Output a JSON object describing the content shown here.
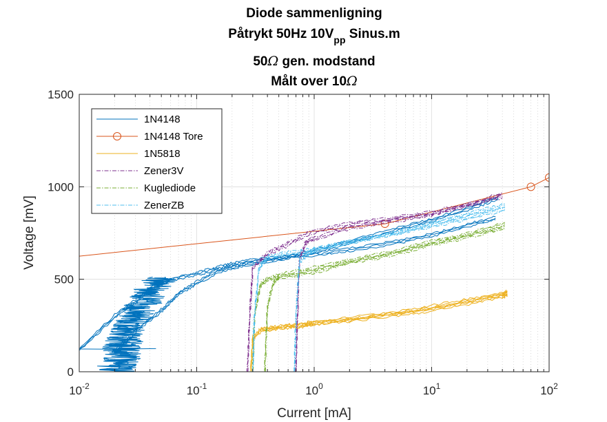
{
  "chart_data": {
    "type": "line",
    "title": [
      "Diode sammenligning",
      "Påtrykt 50Hz 10V_pp Sinus.m",
      "50Ω gen. modstand",
      "Målt over 10Ω"
    ],
    "title_parts": {
      "line1": "Diode sammenligning",
      "line2_main": "Påtrykt 50Hz 10V",
      "line2_sub": "pp",
      "line2_end": " Sinus.m",
      "line3_a": "50",
      "line3_omega": "Ω",
      "line3_b": " gen. modstand",
      "line4_a": "Målt over 10",
      "line4_omega": "Ω"
    },
    "xlabel": "Current [mA]",
    "ylabel": "Voltage [mV]",
    "xscale": "log",
    "xlim": [
      0.01,
      100
    ],
    "ylim": [
      0,
      1500
    ],
    "grid": "on (major and minor)",
    "legend_placement": "top-left",
    "x_ticks": [
      {
        "base": "10",
        "exp": "-2"
      },
      {
        "base": "10",
        "exp": "-1"
      },
      {
        "base": "10",
        "exp": "0"
      },
      {
        "base": "10",
        "exp": "1"
      },
      {
        "base": "10",
        "exp": "2"
      }
    ],
    "y_ticks": [
      "0",
      "500",
      "1000",
      "1500"
    ],
    "series": [
      {
        "name": "1N4148",
        "color": "#0072BD",
        "style": "solid",
        "marker": "none",
        "branches": [
          {
            "x": [
              0.0101,
              0.02,
              0.03,
              0.045,
              0.06,
              0.1,
              0.15,
              0.2,
              0.3,
              0.5,
              1,
              2,
              5,
              10,
              20,
              35
            ],
            "y": [
              120,
              300,
              380,
              470,
              500,
              530,
              560,
              580,
              600,
              615,
              635,
              660,
              700,
              740,
              790,
              830
            ],
            "noise": 0
          },
          {
            "x": [
              0.02,
              0.03,
              0.05,
              0.07,
              0.1,
              0.15,
              0.25,
              0.5,
              1,
              2,
              5,
              10,
              20,
              37
            ],
            "y": [
              100,
              220,
              330,
              420,
              480,
              540,
              580,
              610,
              650,
              700,
              770,
              820,
              880,
              940
            ],
            "noise": 0
          }
        ],
        "noise_band": {
          "x_range": [
            0.012,
            0.06
          ],
          "y_range": [
            0,
            510
          ]
        },
        "low_spike": {
          "x": [
            0.0101,
            0.018,
            0.045
          ],
          "y": [
            123,
            122,
            125
          ]
        }
      },
      {
        "name": "1N4148 Tore",
        "color": "#D95319",
        "style": "solid",
        "marker": "o",
        "x": [
          0.01,
          4,
          70,
          100
        ],
        "y": [
          625,
          800,
          1000,
          1050
        ]
      },
      {
        "name": "1N5818",
        "color": "#EDB120",
        "style": "solid",
        "marker": "none",
        "branches": [
          {
            "x": [
              0.29,
              0.3,
              0.35,
              0.5,
              0.8,
              1,
              2,
              5,
              10,
              20,
              40,
              44
            ],
            "y": [
              0,
              180,
              225,
              240,
              255,
              265,
              285,
              320,
              350,
              385,
              420,
              430
            ]
          },
          {
            "x": [
              0.35,
              0.5,
              0.8,
              1,
              2,
              5,
              10,
              20,
              40,
              44
            ],
            "y": [
              225,
              240,
              250,
              260,
              280,
              310,
              335,
              370,
              410,
              420
            ]
          }
        ]
      },
      {
        "name": "Zener3V",
        "color": "#7E2F8E",
        "style": "dash-dot",
        "marker": "none",
        "branches": [
          {
            "x": [
              0.27,
              0.28,
              0.3,
              0.4,
              0.6,
              0.9,
              2,
              5,
              10,
              20,
              40
            ],
            "y": [
              0,
              250,
              560,
              640,
              690,
              750,
              800,
              830,
              860,
              900,
              960
            ]
          },
          {
            "x": [
              0.7,
              0.72,
              0.75,
              0.85,
              1,
              2,
              5,
              10,
              20,
              40
            ],
            "y": [
              0,
              300,
              600,
              700,
              720,
              780,
              820,
              850,
              900,
              950
            ]
          }
        ]
      },
      {
        "name": "Kuglediode",
        "color": "#77AC30",
        "style": "dash-dot",
        "marker": "none",
        "branches": [
          {
            "x": [
              0.3,
              0.31,
              0.35,
              0.4,
              0.5,
              1,
              2,
              5,
              10,
              20,
              42
            ],
            "y": [
              0,
              300,
              470,
              500,
              520,
              560,
              600,
              650,
              700,
              740,
              800
            ]
          },
          {
            "x": [
              0.38,
              0.4,
              0.45,
              0.5,
              1,
              2,
              5,
              10,
              20,
              42
            ],
            "y": [
              0,
              350,
              480,
              510,
              540,
              590,
              640,
              690,
              730,
              780
            ]
          }
        ]
      },
      {
        "name": "ZenerZB",
        "color": "#4DBEEE",
        "style": "dash-dot",
        "marker": "none",
        "branches": [
          {
            "x": [
              0.3,
              0.31,
              0.34,
              0.4,
              0.6,
              1,
              2,
              5,
              10,
              20,
              42
            ],
            "y": [
              0,
              300,
              560,
              620,
              640,
              660,
              700,
              750,
              800,
              850,
              900
            ]
          },
          {
            "x": [
              0.68,
              0.7,
              0.75,
              0.9,
              1,
              2,
              5,
              10,
              20,
              42
            ],
            "y": [
              0,
              300,
              600,
              640,
              660,
              700,
              750,
              790,
              830,
              880
            ]
          }
        ]
      }
    ]
  }
}
